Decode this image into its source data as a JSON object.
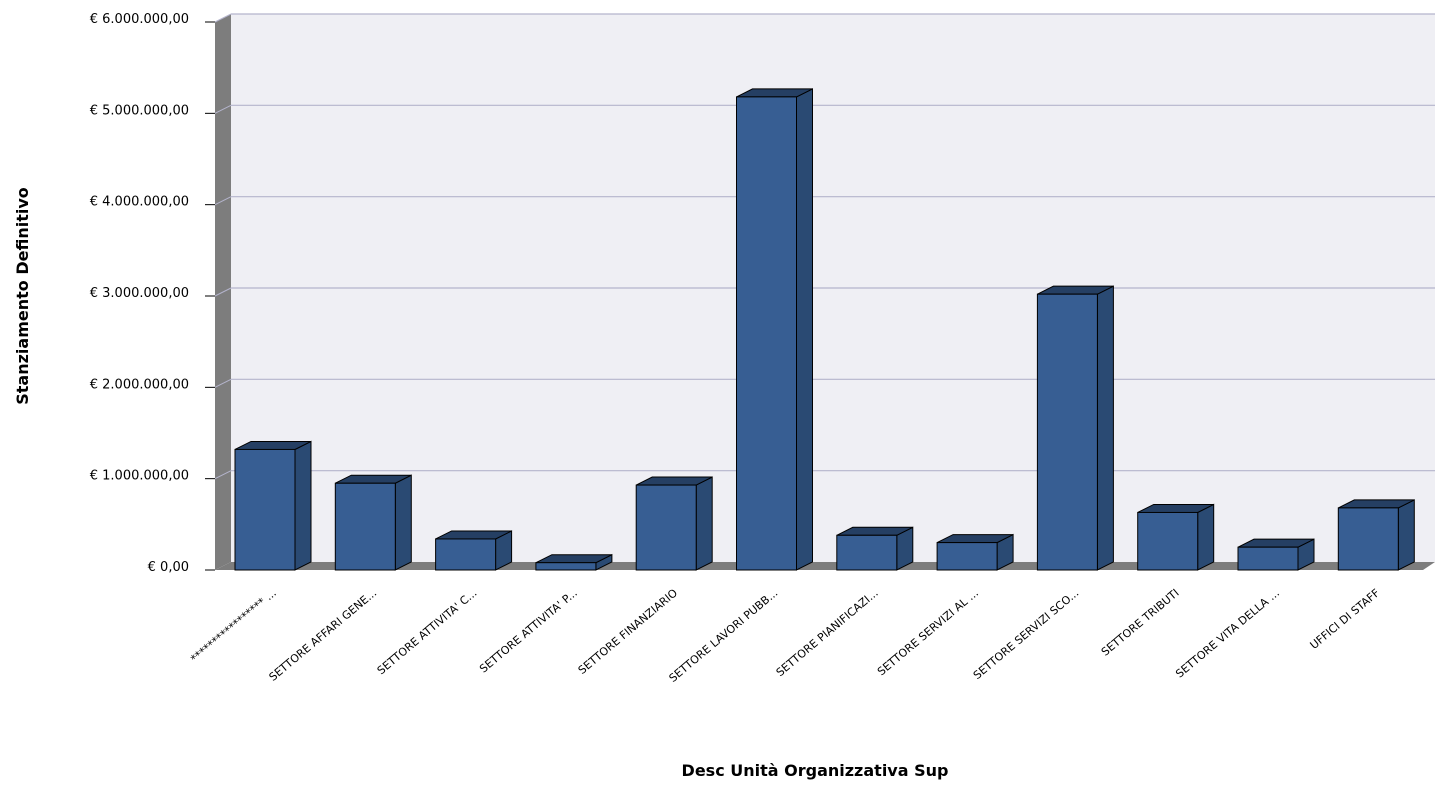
{
  "chart_data": {
    "type": "bar",
    "xlabel": "Desc Unità Organizzativa Sup",
    "ylabel": "Stanziamento Definitivo",
    "ylim": [
      0,
      6000000
    ],
    "y_ticks": [
      {
        "value": 0,
        "label": "€ 0,00"
      },
      {
        "value": 1000000,
        "label": "€ 1.000.000,00"
      },
      {
        "value": 2000000,
        "label": "€ 2.000.000,00"
      },
      {
        "value": 3000000,
        "label": "€ 3.000.000,00"
      },
      {
        "value": 4000000,
        "label": "€ 4.000.000,00"
      },
      {
        "value": 5000000,
        "label": "€ 5.000.000,00"
      },
      {
        "value": 6000000,
        "label": "€ 6.000.000,00"
      }
    ],
    "categories": [
      "***************** ...",
      "SETTORE AFFARI GENE...",
      "SETTORE ATTIVITA' C...",
      "SETTORE ATTIVITA' P...",
      "SETTORE FINANZIARIO",
      "SETTORE LAVORI PUBB...",
      "SETTORE PIANIFICAZI...",
      "SETTORE SERVIZI AL ...",
      "SETTORE SERVIZI SCO...",
      "SETTORE TRIBUTI",
      "SETTORE VITA DELLA ...",
      "UFFICI DI STAFF"
    ],
    "values": [
      1320000,
      950000,
      340000,
      80000,
      930000,
      5180000,
      380000,
      300000,
      3020000,
      630000,
      250000,
      680000
    ],
    "grid": true,
    "three_d": true,
    "colors": {
      "bar_front": "#375e93",
      "bar_top": "#253f63",
      "bar_side": "#2a4a73",
      "plot_bg": "#efeff4",
      "wall": "#7d7d7d",
      "gridline": "#b4b4cc"
    }
  }
}
